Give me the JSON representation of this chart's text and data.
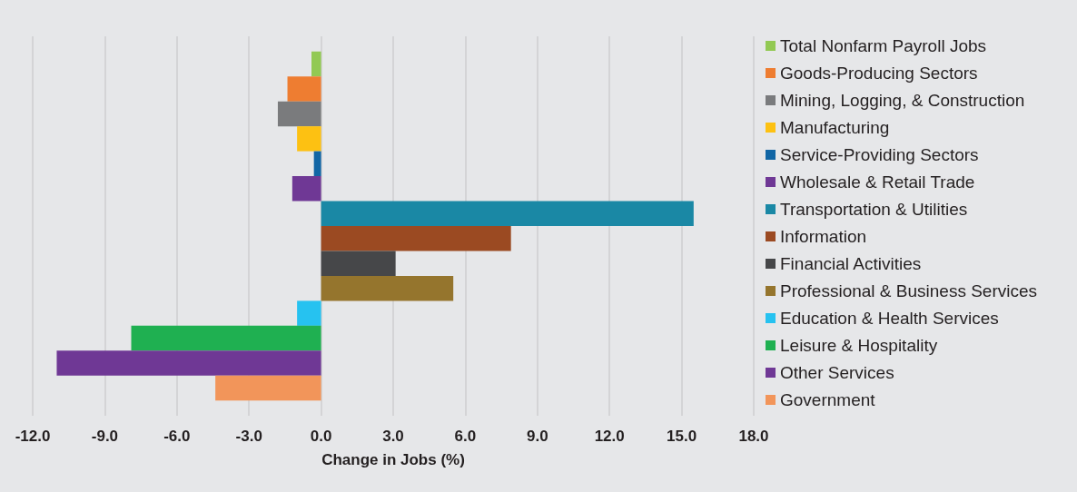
{
  "chart_data": {
    "type": "bar",
    "orientation": "horizontal",
    "xlabel": "Change in Jobs (%)",
    "categories": [
      null
    ],
    "series": [
      {
        "name": "Total Nonfarm Payroll Jobs",
        "color": "#92c953",
        "values": [
          -0.4
        ]
      },
      {
        "name": "Goods-Producing Sectors",
        "color": "#ee7d31",
        "values": [
          -1.4
        ]
      },
      {
        "name": "Mining, Logging, & Construction",
        "color": "#7a7b7d",
        "values": [
          -1.8
        ]
      },
      {
        "name": "Manufacturing",
        "color": "#fdc112",
        "values": [
          -1.0
        ]
      },
      {
        "name": "Service-Providing Sectors",
        "color": "#1166a5",
        "values": [
          -0.3
        ]
      },
      {
        "name": "Wholesale & Retail Trade",
        "color": "#6f3895",
        "values": [
          -1.2
        ]
      },
      {
        "name": "Transportation & Utilities",
        "color": "#1a88a5",
        "values": [
          15.5
        ]
      },
      {
        "name": "Information",
        "color": "#9b4a22",
        "values": [
          7.9
        ]
      },
      {
        "name": "Financial Activities",
        "color": "#464749",
        "values": [
          3.1
        ]
      },
      {
        "name": "Professional & Business Services",
        "color": "#95752d",
        "values": [
          5.5
        ]
      },
      {
        "name": "Education & Health Services",
        "color": "#26c2f0",
        "values": [
          -1.0
        ]
      },
      {
        "name": "Leisure & Hospitality",
        "color": "#1fb051",
        "values": [
          -7.9
        ]
      },
      {
        "name": "Other Services",
        "color": "#6f3895",
        "values": [
          -11.0
        ]
      },
      {
        "name": "Government",
        "color": "#f2955a",
        "values": [
          -4.4
        ]
      }
    ],
    "xlim": [
      -12,
      18
    ],
    "xticks": [
      {
        "value": -12,
        "label": "-12.0"
      },
      {
        "value": -9,
        "label": "-9.0"
      },
      {
        "value": -6,
        "label": "-6.0"
      },
      {
        "value": -3,
        "label": "-3.0"
      },
      {
        "value": 0,
        "label": "0.0"
      },
      {
        "value": 3,
        "label": "3.0"
      },
      {
        "value": 6,
        "label": "6.0"
      },
      {
        "value": 9,
        "label": "9.0"
      },
      {
        "value": 12,
        "label": "12.0"
      },
      {
        "value": 15,
        "label": "15.0"
      },
      {
        "value": 18,
        "label": "18.0"
      }
    ],
    "grid": "x",
    "legend": "right"
  }
}
